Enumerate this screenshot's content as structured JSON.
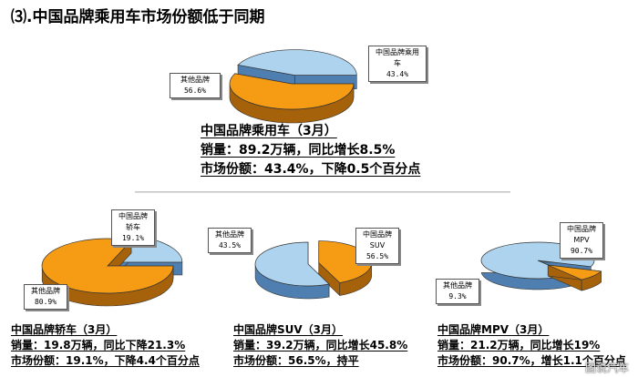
{
  "title": "⑶.中国品牌乘用车市场份额低于同期",
  "colors": {
    "own_top": "#add3ee",
    "own_side": "#4f7fb0",
    "other_top": "#f59b14",
    "other_side": "#a6610b",
    "edge": "#333333"
  },
  "chart_data": [
    {
      "type": "pie",
      "title": "中国品牌乘用车（3月）",
      "slices": [
        {
          "label": "中国品牌乘用车",
          "value": 43.4,
          "display": "43.4%"
        },
        {
          "label": "其他品牌",
          "value": 56.6,
          "display": "56.6%"
        }
      ]
    },
    {
      "type": "pie",
      "title": "中国品牌轿车（3月）",
      "slices": [
        {
          "label": "中国品牌轿车",
          "value": 19.1,
          "display": "19.1%"
        },
        {
          "label": "其他品牌",
          "value": 80.9,
          "display": "80.9%"
        }
      ]
    },
    {
      "type": "pie",
      "title": "中国品牌SUV（3月）",
      "slices": [
        {
          "label": "中国品牌SUV",
          "value": 56.5,
          "display": "56.5%"
        },
        {
          "label": "其他品牌",
          "value": 43.5,
          "display": "43.5%"
        }
      ]
    },
    {
      "type": "pie",
      "title": "中国品牌MPV（3月）",
      "slices": [
        {
          "label": "中国品牌MPV",
          "value": 90.7,
          "display": "90.7%"
        },
        {
          "label": "其他品牌",
          "value": 9.3,
          "display": "9.3%"
        }
      ]
    }
  ],
  "main_summary": {
    "heading": "中国品牌乘用车（3月）",
    "sales": "销量：89.2万辆，同比增长8.5%",
    "share": "市场份额：43.4%，下降0.5个百分点"
  },
  "sedan": {
    "heading": "中国品牌轿车（3月）",
    "sales": "销量：19.8万辆，同比下降21.3%",
    "share": "市场份额：19.1%，下降4.4个百分点",
    "own_label_1": "中国品牌",
    "own_label_2": "轿车",
    "own_pct": "19.1%",
    "other_label": "其他品牌",
    "other_pct": "80.9%"
  },
  "suv": {
    "heading": "中国品牌SUV（3月）",
    "sales": "销量：39.2万辆，同比增长45.8%",
    "share": "市场份额：56.5%，持平",
    "own_label_1": "中国品牌",
    "own_label_2": "SUV",
    "own_pct": "56.5%",
    "other_label": "其他品牌",
    "other_pct": "43.5%"
  },
  "mpv": {
    "heading": "中国品牌MPV（3月）",
    "sales": "销量：21.2万辆，同比增长19%",
    "share": "市场份额：90.7%，增长1.1个百分点",
    "own_label_1": "中国品牌",
    "own_label_2": "MPV",
    "own_pct": "90.7%",
    "other_label": "其他品牌",
    "other_pct": "9.3%"
  },
  "main_callouts": {
    "own_label_1": "中国品牌乘用",
    "own_label_2": "车",
    "own_pct": "43.4%",
    "other_label": "其他品牌",
    "other_pct": "56.6%"
  },
  "watermark": "图说汽车"
}
